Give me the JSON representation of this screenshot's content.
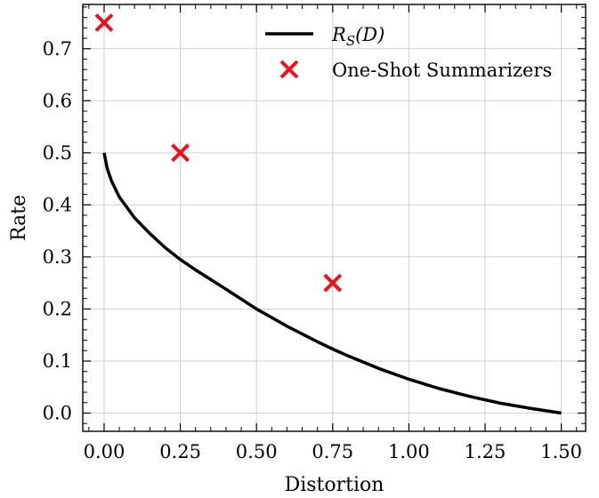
{
  "chart_data": {
    "type": "line",
    "xlabel": "Distortion",
    "ylabel": "Rate",
    "xlim": [
      -0.07,
      1.58
    ],
    "ylim": [
      -0.035,
      0.785
    ],
    "xticks": [
      "0.00",
      "0.25",
      "0.50",
      "0.75",
      "1.00",
      "1.25",
      "1.50"
    ],
    "yticks": [
      "0.0",
      "0.1",
      "0.2",
      "0.3",
      "0.4",
      "0.5",
      "0.6",
      "0.7"
    ],
    "grid": true,
    "legend_position": "top-center",
    "series": [
      {
        "name": "R_S(D)",
        "kind": "line",
        "color": "#000000",
        "x": [
          0.0,
          0.01,
          0.025,
          0.05,
          0.1,
          0.15,
          0.2,
          0.25,
          0.3,
          0.4,
          0.5,
          0.6,
          0.7,
          0.75,
          0.8,
          0.9,
          1.0,
          1.1,
          1.2,
          1.3,
          1.4,
          1.5
        ],
        "y": [
          0.5,
          0.47,
          0.445,
          0.415,
          0.375,
          0.345,
          0.318,
          0.295,
          0.275,
          0.238,
          0.2,
          0.167,
          0.137,
          0.123,
          0.11,
          0.086,
          0.065,
          0.047,
          0.032,
          0.019,
          0.009,
          0.0
        ]
      },
      {
        "name": "One-Shot Summarizers",
        "kind": "scatter",
        "marker": "x",
        "color": "#e8141b",
        "x": [
          0.0,
          0.25,
          0.75
        ],
        "y": [
          0.75,
          0.5,
          0.25
        ]
      }
    ],
    "legend": {
      "curve_label_base": "R",
      "curve_label_sub": "S",
      "curve_label_arg": "(D)",
      "scatter_label": "One-Shot Summarizers"
    }
  }
}
